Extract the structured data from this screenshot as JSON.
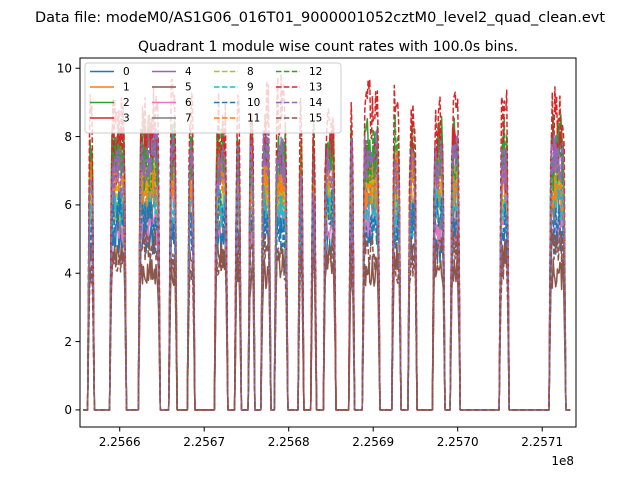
{
  "figure": {
    "suptitle": "Data file: modeM0/AS1G06_016T01_9000001052cztM0_level2_quad_clean.evt",
    "title": "Quadrant 1 module wise count rates with 100.0s bins."
  },
  "chart_data": {
    "type": "line",
    "title": "Quadrant 1 module wise count rates with 100.0s bins.",
    "xlabel": "",
    "ylabel": "",
    "x_offset_label": "1e8",
    "xlim": [
      225655300,
      225714000
    ],
    "ylim": [
      -0.5,
      10.3
    ],
    "grid": false,
    "legend_position": "top-left",
    "legend_columns": 4,
    "x_ticks": [
      {
        "value": 225660000,
        "label": "2.2566"
      },
      {
        "value": 225670000,
        "label": "2.2567"
      },
      {
        "value": 225680000,
        "label": "2.2568"
      },
      {
        "value": 225690000,
        "label": "2.2569"
      },
      {
        "value": 225700000,
        "label": "2.2570"
      },
      {
        "value": 225710000,
        "label": "2.2571"
      }
    ],
    "y_ticks": [
      {
        "value": 0,
        "label": "0"
      },
      {
        "value": 2,
        "label": "2"
      },
      {
        "value": 4,
        "label": "4"
      },
      {
        "value": 6,
        "label": "6"
      },
      {
        "value": 8,
        "label": "8"
      },
      {
        "value": 10,
        "label": "10"
      }
    ],
    "on_intervals": [
      [
        225656200,
        225657000
      ],
      [
        225658800,
        225660800
      ],
      [
        225662200,
        225664800
      ],
      [
        225665800,
        225666800
      ],
      [
        225668000,
        225668900
      ],
      [
        225671200,
        225672800
      ],
      [
        225673600,
        225674400
      ],
      [
        225675200,
        225676000
      ],
      [
        225676700,
        225677900
      ],
      [
        225678300,
        225679900
      ],
      [
        225681100,
        225681800
      ],
      [
        225682600,
        225683300
      ],
      [
        225684100,
        225685600
      ],
      [
        225687100,
        225687800
      ],
      [
        225688700,
        225690800
      ],
      [
        225692200,
        225693300
      ],
      [
        225694100,
        225695200
      ],
      [
        225697000,
        225698500
      ],
      [
        225699100,
        225700300
      ],
      [
        225704900,
        225706100
      ],
      [
        225710800,
        225712800
      ]
    ],
    "series": [
      {
        "name": "0",
        "level": 5.2,
        "color": "#1f77b4",
        "dash": false
      },
      {
        "name": "1",
        "level": 6.5,
        "color": "#ff7f0e",
        "dash": false
      },
      {
        "name": "2",
        "level": 7.6,
        "color": "#2ca02c",
        "dash": false
      },
      {
        "name": "3",
        "level": 7.3,
        "color": "#d62728",
        "dash": false
      },
      {
        "name": "4",
        "level": 7.0,
        "color": "#9467bd",
        "dash": false
      },
      {
        "name": "5",
        "level": 4.3,
        "color": "#8c564b",
        "dash": false
      },
      {
        "name": "6",
        "level": 5.6,
        "color": "#e377c2",
        "dash": false
      },
      {
        "name": "7",
        "level": 6.0,
        "color": "#7f7f7f",
        "dash": false
      },
      {
        "name": "8",
        "level": 6.3,
        "color": "#bcbd22",
        "dash": true
      },
      {
        "name": "9",
        "level": 5.9,
        "color": "#17becf",
        "dash": true
      },
      {
        "name": "10",
        "level": 5.5,
        "color": "#1f77b4",
        "dash": true
      },
      {
        "name": "11",
        "level": 6.8,
        "color": "#ff7f0e",
        "dash": true
      },
      {
        "name": "12",
        "level": 7.5,
        "color": "#2ca02c",
        "dash": true
      },
      {
        "name": "13",
        "level": 8.6,
        "color": "#d62728",
        "dash": true
      },
      {
        "name": "14",
        "level": 7.2,
        "color": "#9467bd",
        "dash": true
      },
      {
        "name": "15",
        "level": 4.5,
        "color": "#8c564b",
        "dash": true
      }
    ]
  }
}
